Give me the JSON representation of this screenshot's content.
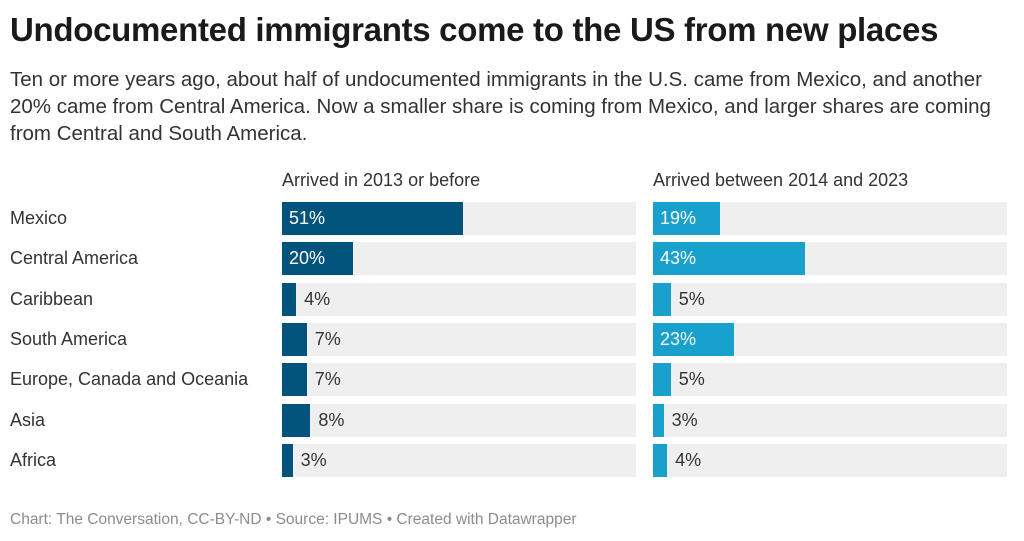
{
  "title": "Undocumented immigrants come to the US from new places",
  "subtitle": "Ten or more years ago, about half of undocumented immigrants in the U.S. came from Mexico, and another 20% came from Central America. Now a smaller share is coming from Mexico, and larger shares are coming from Central and South America.",
  "footer": "Chart: The Conversation, CC-BY-ND • Source: IPUMS • Created with Datawrapper",
  "chart_data": {
    "type": "bar",
    "orientation": "horizontal",
    "categories": [
      "Mexico",
      "Central America",
      "Caribbean",
      "South America",
      "Europe, Canada and Oceania",
      "Asia",
      "Africa"
    ],
    "series": [
      {
        "name": "Arrived in 2013 or before",
        "values": [
          51,
          20,
          4,
          7,
          7,
          8,
          3
        ],
        "labels": [
          "51%",
          "20%",
          "4%",
          "7%",
          "7%",
          "8%",
          "3%"
        ],
        "color": "#02547c"
      },
      {
        "name": "Arrived between 2014 and 2023",
        "values": [
          19,
          43,
          5,
          23,
          5,
          3,
          4
        ],
        "labels": [
          "19%",
          "43%",
          "5%",
          "23%",
          "5%",
          "3%",
          "4%"
        ],
        "color": "#18a1cd"
      }
    ],
    "xlim": [
      0,
      100
    ],
    "unit": "%",
    "track_color": "#efefef"
  }
}
